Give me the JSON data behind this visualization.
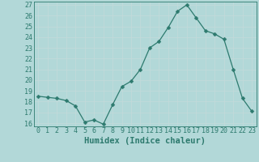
{
  "x": [
    0,
    1,
    2,
    3,
    4,
    5,
    6,
    7,
    8,
    9,
    10,
    11,
    12,
    13,
    14,
    15,
    16,
    17,
    18,
    19,
    20,
    21,
    22,
    23
  ],
  "y": [
    18.5,
    18.4,
    18.3,
    18.1,
    17.6,
    16.1,
    16.3,
    15.9,
    17.7,
    19.4,
    19.9,
    21.0,
    23.0,
    23.6,
    24.9,
    26.4,
    27.0,
    25.8,
    24.6,
    24.3,
    23.8,
    21.0,
    18.3,
    17.1
  ],
  "line_color": "#2d7a6e",
  "marker": "D",
  "marker_size": 2.5,
  "bg_color": "#b2d8d8",
  "grid_color": "#c8e4e4",
  "xlabel": "Humidex (Indice chaleur)",
  "ylim": [
    16,
    27
  ],
  "xlim": [
    -0.5,
    23.5
  ],
  "yticks": [
    16,
    17,
    18,
    19,
    20,
    21,
    22,
    23,
    24,
    25,
    26,
    27
  ],
  "xticks": [
    0,
    1,
    2,
    3,
    4,
    5,
    6,
    7,
    8,
    9,
    10,
    11,
    12,
    13,
    14,
    15,
    16,
    17,
    18,
    19,
    20,
    21,
    22,
    23
  ],
  "tick_color": "#2d7a6e",
  "label_fontsize": 7.5,
  "tick_fontsize": 6
}
